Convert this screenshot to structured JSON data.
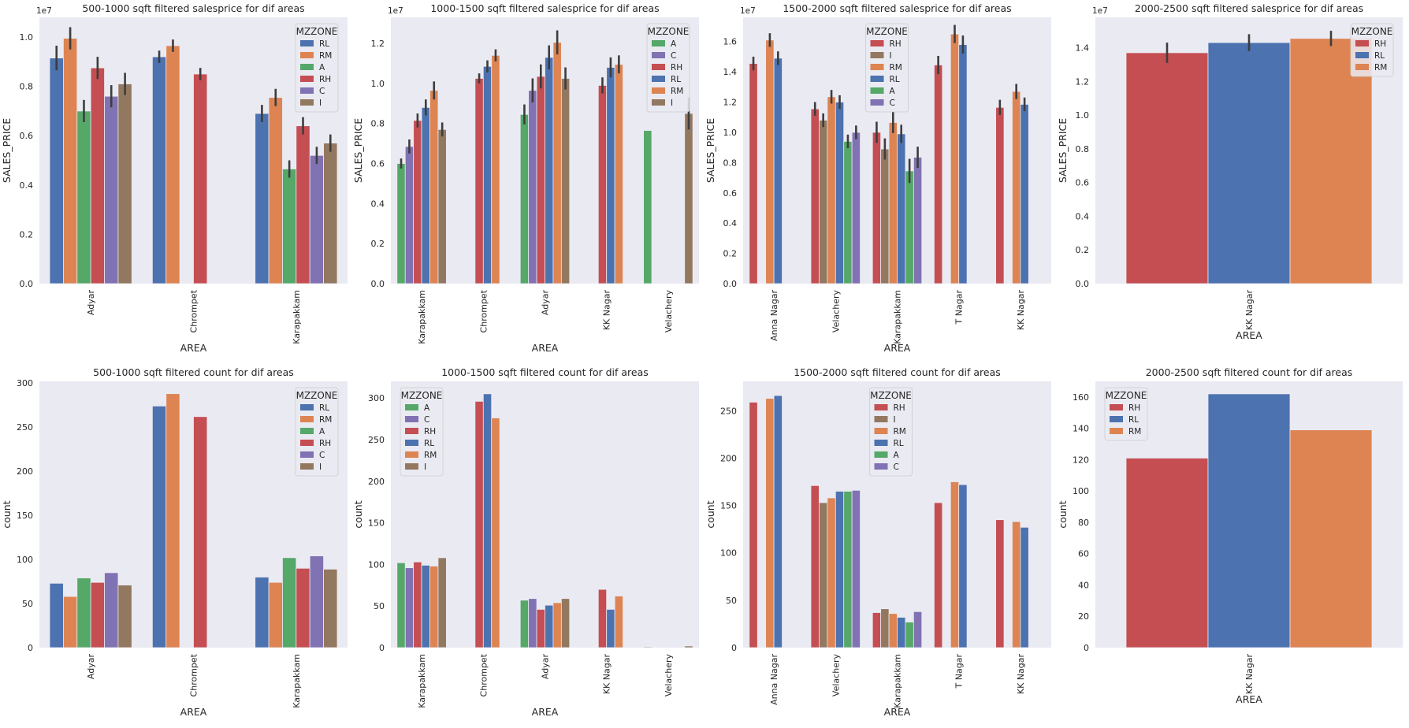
{
  "palette": {
    "RL": "#4c72b0",
    "RM": "#dd8452",
    "A": "#55a868",
    "RH": "#c44e52",
    "C": "#8172b3",
    "I": "#937860",
    "H": "#937860"
  },
  "chart_data": [
    {
      "type": "bar",
      "title": "500-1000 sqft filtered salesprice for dif areas",
      "xlabel": "AREA",
      "ylabel": "SALES_PRICE",
      "y_exponent": "1e7",
      "ylim": [
        0,
        1.08
      ],
      "yticks": [
        0.0,
        0.2,
        0.4,
        0.6,
        0.8,
        1.0
      ],
      "categories": [
        "Adyar",
        "Chrompet",
        "Karapakkam"
      ],
      "legend_title": "MZZONE",
      "legend_loc": "top-right",
      "series": [
        {
          "name": "RL",
          "values": [
            0.915,
            0.92,
            0.69
          ],
          "err": [
            0.05,
            0.025,
            0.035
          ]
        },
        {
          "name": "RM",
          "values": [
            0.995,
            0.965,
            0.755
          ],
          "err": [
            0.045,
            0.025,
            0.035
          ]
        },
        {
          "name": "A",
          "values": [
            0.7,
            null,
            0.465
          ],
          "err": [
            0.045,
            null,
            0.035
          ]
        },
        {
          "name": "RH",
          "values": [
            0.875,
            0.85,
            0.64
          ],
          "err": [
            0.045,
            0.025,
            0.035
          ]
        },
        {
          "name": "C",
          "values": [
            0.76,
            null,
            0.52
          ],
          "err": [
            0.045,
            null,
            0.035
          ]
        },
        {
          "name": "I",
          "values": [
            0.81,
            null,
            0.57
          ],
          "err": [
            0.045,
            null,
            0.035
          ]
        }
      ]
    },
    {
      "type": "bar",
      "title": "1000-1500 sqft filtered salesprice for dif areas",
      "xlabel": "AREA",
      "ylabel": "SALES_PRICE",
      "y_exponent": "1e7",
      "ylim": [
        0,
        1.33
      ],
      "yticks": [
        0.0,
        0.2,
        0.4,
        0.6,
        0.8,
        1.0,
        1.2
      ],
      "categories": [
        "Karapakkam",
        "Chrompet",
        "Adyar",
        "KK Nagar",
        "Velachery"
      ],
      "legend_title": "MZZONE",
      "legend_loc": "top-right",
      "series": [
        {
          "name": "A",
          "values": [
            0.6,
            null,
            0.845,
            null,
            0.765
          ],
          "err": [
            0.025,
            null,
            0.05,
            null,
            null
          ]
        },
        {
          "name": "C",
          "values": [
            0.685,
            null,
            0.965,
            null,
            null
          ],
          "err": [
            0.035,
            null,
            0.06,
            null,
            null
          ]
        },
        {
          "name": "RH",
          "values": [
            0.815,
            1.025,
            1.035,
            0.99,
            null
          ],
          "err": [
            0.035,
            0.025,
            0.06,
            0.04,
            null
          ]
        },
        {
          "name": "RL",
          "values": [
            0.88,
            1.085,
            1.13,
            1.08,
            null
          ],
          "err": [
            0.04,
            0.03,
            0.06,
            0.05,
            null
          ]
        },
        {
          "name": "RM",
          "values": [
            0.965,
            1.14,
            1.205,
            1.095,
            null
          ],
          "err": [
            0.045,
            0.03,
            0.06,
            0.045,
            null
          ]
        },
        {
          "name": "I",
          "values": [
            0.77,
            null,
            1.025,
            null,
            0.85
          ],
          "err": [
            0.035,
            null,
            0.055,
            null,
            0.08
          ]
        }
      ]
    },
    {
      "type": "bar",
      "title": "1500-2000 sqft filtered salesprice for dif areas",
      "xlabel": "AREA",
      "ylabel": "SALES_PRICE",
      "y_exponent": "1e7",
      "ylim": [
        0,
        1.76
      ],
      "yticks": [
        0.0,
        0.2,
        0.4,
        0.6,
        0.8,
        1.0,
        1.2,
        1.4,
        1.6
      ],
      "categories": [
        "Anna Nagar",
        "Velachery",
        "Karapakkam",
        "T Nagar",
        "KK Nagar"
      ],
      "legend_title": "MZZONE",
      "legend_loc": "top-center",
      "series": [
        {
          "name": "RH",
          "values": [
            1.455,
            1.155,
            1.0,
            1.445,
            1.165
          ],
          "err": [
            0.045,
            0.045,
            0.07,
            0.06,
            0.05
          ]
        },
        {
          "name": "I",
          "values": [
            null,
            1.08,
            0.89,
            null,
            null
          ],
          "err": [
            null,
            0.045,
            0.07,
            null,
            null
          ]
        },
        {
          "name": "RM",
          "values": [
            1.61,
            1.235,
            1.065,
            1.65,
            1.27
          ],
          "err": [
            0.045,
            0.045,
            0.07,
            0.06,
            0.05
          ]
        },
        {
          "name": "RL",
          "values": [
            1.49,
            1.2,
            0.99,
            1.58,
            1.185
          ],
          "err": [
            0.045,
            0.045,
            0.06,
            0.06,
            0.045
          ]
        },
        {
          "name": "A",
          "values": [
            null,
            0.94,
            0.745,
            null,
            null
          ],
          "err": [
            null,
            0.045,
            0.08,
            null,
            null
          ]
        },
        {
          "name": "C",
          "values": [
            null,
            1.0,
            0.835,
            null,
            null
          ],
          "err": [
            null,
            0.045,
            0.07,
            null,
            null
          ]
        }
      ]
    },
    {
      "type": "bar",
      "title": "2000-2500 sqft filtered salesprice for dif areas",
      "xlabel": "AREA",
      "ylabel": "SALES_PRICE",
      "y_exponent": "1e7",
      "ylim": [
        0,
        1.58
      ],
      "yticks": [
        0.0,
        0.2,
        0.4,
        0.6,
        0.8,
        1.0,
        1.2,
        1.4
      ],
      "categories": [
        "KK Nagar"
      ],
      "legend_title": "MZZONE",
      "legend_loc": "top-right",
      "series": [
        {
          "name": "RH",
          "values": [
            1.37
          ],
          "err": [
            0.06
          ]
        },
        {
          "name": "RL",
          "values": [
            1.43
          ],
          "err": [
            0.05
          ]
        },
        {
          "name": "RM",
          "values": [
            1.455
          ],
          "err": [
            0.045
          ]
        }
      ]
    },
    {
      "type": "bar",
      "title": "500-1000 sqft filtered count for dif areas",
      "xlabel": "AREA",
      "ylabel": "count",
      "ylim": [
        0,
        302
      ],
      "yticks": [
        0,
        50,
        100,
        150,
        200,
        250,
        300
      ],
      "categories": [
        "Adyar",
        "Chrompet",
        "Karapakkam"
      ],
      "legend_title": "MZZONE",
      "legend_loc": "top-right",
      "series": [
        {
          "name": "RL",
          "values": [
            73,
            274,
            80
          ]
        },
        {
          "name": "RM",
          "values": [
            58,
            288,
            74
          ]
        },
        {
          "name": "A",
          "values": [
            79,
            null,
            102
          ]
        },
        {
          "name": "RH",
          "values": [
            74,
            262,
            90
          ]
        },
        {
          "name": "C",
          "values": [
            85,
            null,
            104
          ]
        },
        {
          "name": "I",
          "values": [
            71,
            null,
            89
          ]
        }
      ]
    },
    {
      "type": "bar",
      "title": "1000-1500 sqft filtered count for dif areas",
      "xlabel": "AREA",
      "ylabel": "count",
      "ylim": [
        0,
        320
      ],
      "yticks": [
        0,
        50,
        100,
        150,
        200,
        250,
        300
      ],
      "categories": [
        "Karapakkam",
        "Chrompet",
        "Adyar",
        "KK Nagar",
        "Velachery"
      ],
      "legend_title": "MZZONE",
      "legend_loc": "top-left",
      "series": [
        {
          "name": "A",
          "values": [
            102,
            null,
            57,
            null,
            1
          ]
        },
        {
          "name": "C",
          "values": [
            96,
            null,
            59,
            null,
            null
          ]
        },
        {
          "name": "RH",
          "values": [
            103,
            296,
            46,
            70,
            null
          ]
        },
        {
          "name": "RL",
          "values": [
            99,
            305,
            51,
            46,
            null
          ]
        },
        {
          "name": "RM",
          "values": [
            98,
            276,
            54,
            62,
            null
          ]
        },
        {
          "name": "I",
          "values": [
            108,
            null,
            59,
            null,
            2
          ]
        }
      ]
    },
    {
      "type": "bar",
      "title": "1500-2000 sqft filtered count for dif areas",
      "xlabel": "AREA",
      "ylabel": "count",
      "ylim": [
        0,
        281
      ],
      "yticks": [
        0,
        50,
        100,
        150,
        200,
        250
      ],
      "categories": [
        "Anna Nagar",
        "Velachery",
        "Karapakkam",
        "T Nagar",
        "KK Nagar"
      ],
      "legend_title": "MZZONE",
      "legend_loc": "top-center",
      "series": [
        {
          "name": "RH",
          "values": [
            259,
            171,
            37,
            153,
            135
          ]
        },
        {
          "name": "I",
          "values": [
            null,
            153,
            41,
            null,
            null
          ]
        },
        {
          "name": "RM",
          "values": [
            263,
            158,
            36,
            175,
            133
          ]
        },
        {
          "name": "RL",
          "values": [
            266,
            165,
            32,
            172,
            127
          ]
        },
        {
          "name": "A",
          "values": [
            null,
            165,
            27,
            null,
            null
          ]
        },
        {
          "name": "C",
          "values": [
            null,
            166,
            38,
            null,
            null
          ]
        }
      ]
    },
    {
      "type": "bar",
      "title": "2000-2500 sqft filtered count for dif areas",
      "xlabel": "AREA",
      "ylabel": "count",
      "ylim": [
        0,
        170
      ],
      "yticks": [
        0,
        20,
        40,
        60,
        80,
        100,
        120,
        140,
        160
      ],
      "categories": [
        "KK Nagar"
      ],
      "legend_title": "MZZONE",
      "legend_loc": "top-left",
      "series": [
        {
          "name": "RH",
          "values": [
            121
          ]
        },
        {
          "name": "RL",
          "values": [
            162
          ]
        },
        {
          "name": "RM",
          "values": [
            139
          ]
        }
      ]
    }
  ]
}
